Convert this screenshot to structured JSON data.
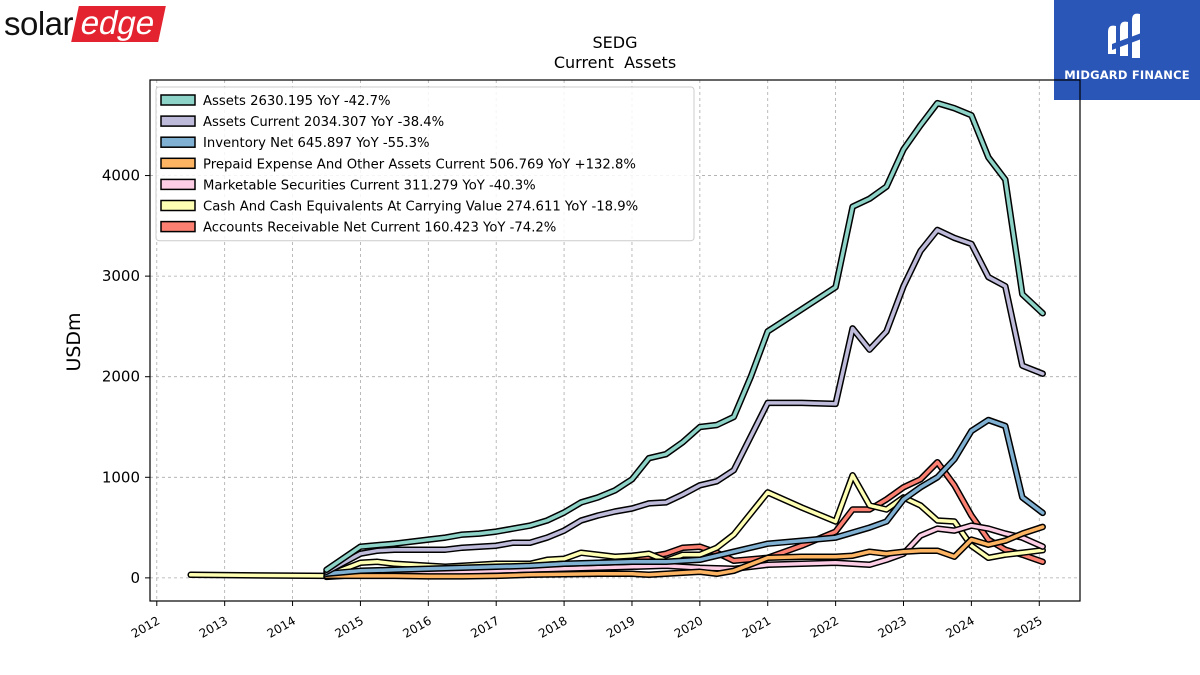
{
  "logos": {
    "left_brand": {
      "part1": "solar",
      "part2": "edge",
      "accent": "#e3232f"
    },
    "right_brand": {
      "text": "MIDGARD FINANCE",
      "background": "#2a56b8"
    }
  },
  "chart_data": {
    "type": "line",
    "title": "SEDG",
    "subtitle": "Current  Assets",
    "ylabel": "USDm",
    "xlabel": "",
    "xlim": [
      2011.9,
      2025.6
    ],
    "ylim": [
      -230,
      4950
    ],
    "xticks": [
      2012,
      2013,
      2014,
      2015,
      2016,
      2017,
      2018,
      2019,
      2020,
      2021,
      2022,
      2023,
      2024,
      2025
    ],
    "yticks": [
      0,
      1000,
      2000,
      3000,
      4000
    ],
    "grid": true,
    "legend_position": "top-left",
    "series": [
      {
        "name": "Assets",
        "legend": "Assets  2630.195 YoY -42.7%",
        "color": "#8dd3c7",
        "points": [
          [
            2014.5,
            80
          ],
          [
            2015.0,
            310
          ],
          [
            2015.5,
            340
          ],
          [
            2016.0,
            380
          ],
          [
            2016.25,
            400
          ],
          [
            2016.5,
            430
          ],
          [
            2016.75,
            440
          ],
          [
            2017.0,
            460
          ],
          [
            2017.25,
            490
          ],
          [
            2017.5,
            520
          ],
          [
            2017.75,
            570
          ],
          [
            2018.0,
            650
          ],
          [
            2018.25,
            750
          ],
          [
            2018.5,
            800
          ],
          [
            2018.75,
            870
          ],
          [
            2019.0,
            980
          ],
          [
            2019.25,
            1190
          ],
          [
            2019.5,
            1230
          ],
          [
            2019.75,
            1350
          ],
          [
            2020.0,
            1500
          ],
          [
            2020.25,
            1520
          ],
          [
            2020.5,
            1600
          ],
          [
            2020.75,
            2000
          ],
          [
            2021.0,
            2450
          ],
          [
            2021.25,
            2560
          ],
          [
            2021.5,
            2670
          ],
          [
            2021.75,
            2780
          ],
          [
            2022.0,
            2890
          ],
          [
            2022.25,
            3690
          ],
          [
            2022.5,
            3770
          ],
          [
            2022.75,
            3890
          ],
          [
            2023.0,
            4260
          ],
          [
            2023.25,
            4500
          ],
          [
            2023.5,
            4720
          ],
          [
            2023.75,
            4670
          ],
          [
            2024.0,
            4600
          ],
          [
            2024.25,
            4180
          ],
          [
            2024.5,
            3960
          ],
          [
            2024.75,
            2820
          ],
          [
            2025.05,
            2630
          ]
        ]
      },
      {
        "name": "Assets Current",
        "legend": "Assets Current  2034.307 YoY -38.4%",
        "color": "#bebada",
        "points": [
          [
            2014.5,
            60
          ],
          [
            2015.0,
            240
          ],
          [
            2015.25,
            270
          ],
          [
            2015.5,
            280
          ],
          [
            2016.0,
            280
          ],
          [
            2016.25,
            280
          ],
          [
            2016.5,
            300
          ],
          [
            2016.75,
            310
          ],
          [
            2017.0,
            320
          ],
          [
            2017.25,
            350
          ],
          [
            2017.5,
            350
          ],
          [
            2017.75,
            400
          ],
          [
            2018.0,
            470
          ],
          [
            2018.25,
            570
          ],
          [
            2018.5,
            620
          ],
          [
            2018.75,
            660
          ],
          [
            2019.0,
            690
          ],
          [
            2019.25,
            740
          ],
          [
            2019.5,
            750
          ],
          [
            2019.75,
            830
          ],
          [
            2020.0,
            920
          ],
          [
            2020.25,
            960
          ],
          [
            2020.5,
            1070
          ],
          [
            2021.0,
            1740
          ],
          [
            2021.5,
            1740
          ],
          [
            2022.0,
            1730
          ],
          [
            2022.25,
            2480
          ],
          [
            2022.5,
            2270
          ],
          [
            2022.75,
            2450
          ],
          [
            2023.0,
            2900
          ],
          [
            2023.25,
            3250
          ],
          [
            2023.5,
            3460
          ],
          [
            2023.75,
            3380
          ],
          [
            2024.0,
            3320
          ],
          [
            2024.25,
            2990
          ],
          [
            2024.5,
            2900
          ],
          [
            2024.75,
            2110
          ],
          [
            2025.05,
            2030
          ]
        ]
      },
      {
        "name": "Inventory Net",
        "legend": "Inventory Net  645.897 YoY -55.3%",
        "color": "#80b1d3",
        "points": [
          [
            2014.5,
            40
          ],
          [
            2015.0,
            70
          ],
          [
            2015.5,
            80
          ],
          [
            2016.0,
            90
          ],
          [
            2016.5,
            100
          ],
          [
            2017.0,
            110
          ],
          [
            2017.5,
            120
          ],
          [
            2018.0,
            140
          ],
          [
            2018.5,
            150
          ],
          [
            2019.0,
            160
          ],
          [
            2019.5,
            160
          ],
          [
            2020.0,
            180
          ],
          [
            2020.5,
            260
          ],
          [
            2021.0,
            340
          ],
          [
            2021.5,
            370
          ],
          [
            2022.0,
            400
          ],
          [
            2022.5,
            500
          ],
          [
            2022.75,
            560
          ],
          [
            2023.0,
            780
          ],
          [
            2023.25,
            900
          ],
          [
            2023.5,
            1000
          ],
          [
            2023.75,
            1180
          ],
          [
            2024.0,
            1460
          ],
          [
            2024.25,
            1570
          ],
          [
            2024.5,
            1510
          ],
          [
            2024.75,
            800
          ],
          [
            2025.05,
            646
          ]
        ]
      },
      {
        "name": "Prepaid Expense And Other Assets Current",
        "legend": "Prepaid Expense And Other Assets Current  506.769 YoY +132.8%",
        "color": "#fdb462",
        "points": [
          [
            2014.5,
            20
          ],
          [
            2015.0,
            20
          ],
          [
            2015.5,
            20
          ],
          [
            2016.0,
            15
          ],
          [
            2016.5,
            15
          ],
          [
            2017.0,
            20
          ],
          [
            2017.5,
            30
          ],
          [
            2018.0,
            35
          ],
          [
            2018.5,
            40
          ],
          [
            2019.0,
            40
          ],
          [
            2019.25,
            30
          ],
          [
            2019.5,
            40
          ],
          [
            2020.0,
            60
          ],
          [
            2020.25,
            40
          ],
          [
            2020.5,
            70
          ],
          [
            2021.0,
            200
          ],
          [
            2021.5,
            210
          ],
          [
            2022.0,
            210
          ],
          [
            2022.25,
            220
          ],
          [
            2022.5,
            260
          ],
          [
            2022.75,
            240
          ],
          [
            2023.0,
            260
          ],
          [
            2023.25,
            270
          ],
          [
            2023.5,
            270
          ],
          [
            2023.75,
            210
          ],
          [
            2024.0,
            380
          ],
          [
            2024.25,
            330
          ],
          [
            2024.5,
            370
          ],
          [
            2024.75,
            440
          ],
          [
            2025.05,
            507
          ]
        ]
      },
      {
        "name": "Marketable Securities Current",
        "legend": "Marketable Securities Current  311.279 YoY -40.3%",
        "color": "#fccde5",
        "points": [
          [
            2014.5,
            10
          ],
          [
            2015.0,
            30
          ],
          [
            2015.5,
            40
          ],
          [
            2016.0,
            50
          ],
          [
            2016.5,
            60
          ],
          [
            2017.0,
            70
          ],
          [
            2017.5,
            80
          ],
          [
            2018.0,
            90
          ],
          [
            2018.5,
            100
          ],
          [
            2019.0,
            110
          ],
          [
            2019.5,
            120
          ],
          [
            2020.0,
            100
          ],
          [
            2020.5,
            90
          ],
          [
            2021.0,
            130
          ],
          [
            2021.5,
            140
          ],
          [
            2022.0,
            150
          ],
          [
            2022.5,
            130
          ],
          [
            2022.75,
            180
          ],
          [
            2023.0,
            240
          ],
          [
            2023.25,
            420
          ],
          [
            2023.5,
            490
          ],
          [
            2023.75,
            470
          ],
          [
            2024.0,
            520
          ],
          [
            2024.25,
            490
          ],
          [
            2024.5,
            440
          ],
          [
            2024.75,
            400
          ],
          [
            2025.05,
            311
          ]
        ]
      },
      {
        "name": "Cash And Cash Equivalents At Carrying Value",
        "legend": "Cash And Cash Equivalents At Carrying Value  274.611 YoY -18.9%",
        "color": "#ffffb3",
        "points": [
          [
            2012.5,
            30
          ],
          [
            2014.5,
            20
          ],
          [
            2015.0,
            150
          ],
          [
            2015.25,
            160
          ],
          [
            2015.5,
            140
          ],
          [
            2015.75,
            130
          ],
          [
            2016.0,
            120
          ],
          [
            2016.25,
            110
          ],
          [
            2016.5,
            120
          ],
          [
            2016.75,
            130
          ],
          [
            2017.0,
            140
          ],
          [
            2017.5,
            140
          ],
          [
            2017.75,
            180
          ],
          [
            2018.0,
            190
          ],
          [
            2018.25,
            250
          ],
          [
            2018.5,
            230
          ],
          [
            2018.75,
            210
          ],
          [
            2019.0,
            220
          ],
          [
            2019.25,
            240
          ],
          [
            2019.5,
            170
          ],
          [
            2019.75,
            230
          ],
          [
            2020.0,
            230
          ],
          [
            2020.25,
            300
          ],
          [
            2020.5,
            430
          ],
          [
            2021.0,
            850
          ],
          [
            2021.5,
            700
          ],
          [
            2022.0,
            560
          ],
          [
            2022.25,
            1020
          ],
          [
            2022.5,
            720
          ],
          [
            2022.75,
            680
          ],
          [
            2023.0,
            800
          ],
          [
            2023.25,
            720
          ],
          [
            2023.5,
            570
          ],
          [
            2023.75,
            560
          ],
          [
            2024.0,
            320
          ],
          [
            2024.25,
            200
          ],
          [
            2024.5,
            230
          ],
          [
            2024.75,
            250
          ],
          [
            2025.05,
            275
          ]
        ]
      },
      {
        "name": "Accounts Receivable Net Current",
        "legend": "Accounts Receivable Net Current  160.423 YoY -74.2%",
        "color": "#fb8072",
        "points": [
          [
            2014.5,
            20
          ],
          [
            2015.0,
            40
          ],
          [
            2015.5,
            50
          ],
          [
            2016.0,
            60
          ],
          [
            2016.5,
            80
          ],
          [
            2017.0,
            90
          ],
          [
            2017.5,
            100
          ],
          [
            2018.0,
            120
          ],
          [
            2018.5,
            150
          ],
          [
            2019.0,
            180
          ],
          [
            2019.5,
            240
          ],
          [
            2019.75,
            300
          ],
          [
            2020.0,
            310
          ],
          [
            2020.25,
            250
          ],
          [
            2020.5,
            170
          ],
          [
            2021.0,
            200
          ],
          [
            2021.5,
            320
          ],
          [
            2022.0,
            460
          ],
          [
            2022.25,
            680
          ],
          [
            2022.5,
            680
          ],
          [
            2022.75,
            780
          ],
          [
            2023.0,
            900
          ],
          [
            2023.25,
            980
          ],
          [
            2023.5,
            1150
          ],
          [
            2023.75,
            920
          ],
          [
            2024.0,
            620
          ],
          [
            2024.25,
            380
          ],
          [
            2024.5,
            280
          ],
          [
            2024.75,
            230
          ],
          [
            2025.05,
            160
          ]
        ]
      }
    ]
  }
}
